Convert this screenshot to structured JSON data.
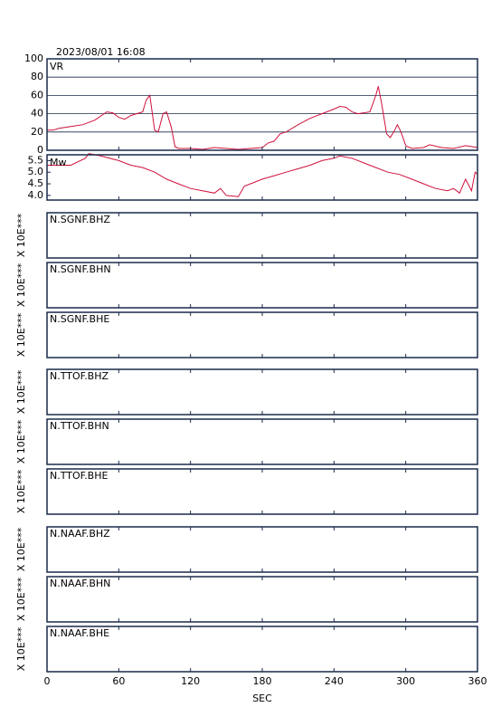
{
  "title": "2023/08/01 16:08",
  "x_axis": {
    "xlim": [
      0,
      360
    ],
    "xticks": [
      0,
      60,
      120,
      180,
      240,
      300,
      360
    ],
    "xlabel": "SEC"
  },
  "chart_data": [
    {
      "type": "line",
      "label": "VR",
      "color": "#d0103a",
      "grid": true,
      "x": [
        0,
        5,
        10,
        20,
        30,
        40,
        50,
        55,
        60,
        65,
        70,
        75,
        80,
        83,
        86,
        90,
        93,
        97,
        100,
        104,
        107,
        110,
        120,
        130,
        140,
        150,
        160,
        170,
        180,
        185,
        190,
        195,
        200,
        210,
        220,
        230,
        240,
        245,
        250,
        255,
        260,
        270,
        275,
        277,
        280,
        284,
        287,
        290,
        293,
        296,
        300,
        305,
        315,
        320,
        330,
        340,
        350,
        360
      ],
      "values": [
        22,
        22,
        24,
        26,
        28,
        33,
        42,
        41,
        36,
        34,
        38,
        40,
        42,
        55,
        60,
        22,
        20,
        40,
        42,
        25,
        4,
        2,
        2,
        1,
        3,
        2,
        1,
        2,
        3,
        8,
        10,
        18,
        20,
        28,
        35,
        40,
        45,
        48,
        47,
        42,
        40,
        42,
        60,
        70,
        50,
        18,
        14,
        20,
        28,
        20,
        5,
        2,
        3,
        6,
        3,
        2,
        5,
        3
      ],
      "ylim": [
        0,
        100
      ],
      "yticks": [
        0,
        20,
        40,
        60,
        80,
        100
      ]
    },
    {
      "type": "line",
      "label": "Mw",
      "color": "#d0103a",
      "grid": false,
      "x": [
        0,
        20,
        32,
        35,
        45,
        60,
        70,
        80,
        90,
        100,
        110,
        120,
        130,
        140,
        145,
        150,
        160,
        165,
        170,
        180,
        190,
        200,
        210,
        220,
        230,
        240,
        245,
        255,
        265,
        275,
        285,
        295,
        305,
        315,
        325,
        335,
        340,
        345,
        350,
        355,
        358,
        360
      ],
      "values": [
        5.3,
        5.3,
        5.6,
        5.8,
        5.7,
        5.5,
        5.3,
        5.2,
        5.0,
        4.7,
        4.5,
        4.3,
        4.2,
        4.1,
        4.3,
        4.0,
        3.95,
        4.4,
        4.5,
        4.7,
        4.85,
        5.0,
        5.15,
        5.3,
        5.5,
        5.6,
        5.7,
        5.6,
        5.4,
        5.2,
        5.0,
        4.9,
        4.7,
        4.5,
        4.3,
        4.2,
        4.3,
        4.1,
        4.7,
        4.2,
        5.0,
        4.9
      ],
      "ylim": [
        3.8,
        5.75
      ],
      "yticks": [
        {
          "value": 4,
          "label": "4.0"
        },
        {
          "value": 4.5,
          "label": "4.5"
        },
        {
          "value": 5,
          "label": "5.0"
        },
        {
          "value": 5.5,
          "label": "5.5"
        }
      ]
    }
  ],
  "stations": [
    {
      "name": "N.SGNF.BHZ",
      "scale_label": "X 10E***"
    },
    {
      "name": "N.SGNF.BHN",
      "scale_label": "X 10E***"
    },
    {
      "name": "N.SGNF.BHE",
      "scale_label": "X 10E***"
    },
    {
      "name": "N.TTOF.BHZ",
      "scale_label": "X 10E***"
    },
    {
      "name": "N.TTOF.BHN",
      "scale_label": "X 10E***"
    },
    {
      "name": "N.TTOF.BHE",
      "scale_label": "X 10E***"
    },
    {
      "name": "N.NAAF.BHZ",
      "scale_label": "X 10E***"
    },
    {
      "name": "N.NAAF.BHN",
      "scale_label": "X 10E***"
    },
    {
      "name": "N.NAAF.BHE",
      "scale_label": "X 10E***"
    }
  ]
}
